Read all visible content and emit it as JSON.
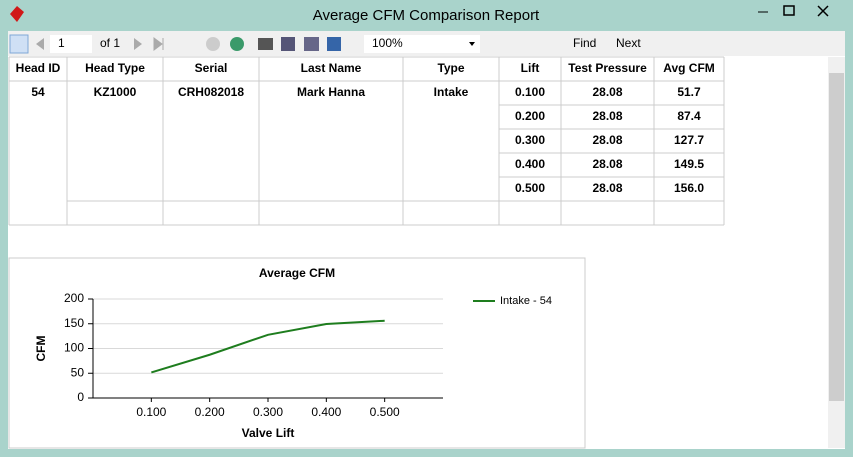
{
  "window": {
    "title": "Average CFM Comparison Report"
  },
  "toolbar": {
    "page": "1",
    "of": "of 1",
    "zoom": "100%",
    "find": "Find",
    "next": "Next"
  },
  "table": {
    "columns": [
      "Head ID",
      "Head Type",
      "Serial",
      "Last Name",
      "Type",
      "Lift",
      "Test Pressure",
      "Avg CFM"
    ],
    "head": [
      "54",
      "KZ1000",
      "CRH082018",
      "Mark Hanna",
      "Intake"
    ],
    "rows": [
      [
        "0.100",
        "28.08",
        "51.7"
      ],
      [
        "0.200",
        "28.08",
        "87.4"
      ],
      [
        "0.300",
        "28.08",
        "127.7"
      ],
      [
        "0.400",
        "28.08",
        "149.5"
      ],
      [
        "0.500",
        "28.08",
        "156.0"
      ]
    ]
  },
  "chart_data": {
    "type": "line",
    "title": "Average CFM",
    "x_label": "Valve Lift",
    "y_label": "CFM",
    "categories": [
      "0.100",
      "0.200",
      "0.300",
      "0.400",
      "0.500"
    ],
    "series": [
      {
        "name": "Intake - 54",
        "color": "#1e7d1e",
        "values": [
          51.7,
          87.4,
          127.7,
          149.5,
          156.0
        ]
      }
    ],
    "ylim": [
      0,
      200
    ],
    "yticks": [
      0,
      50,
      100,
      150,
      200
    ],
    "grid": true,
    "legend": "top-right"
  }
}
